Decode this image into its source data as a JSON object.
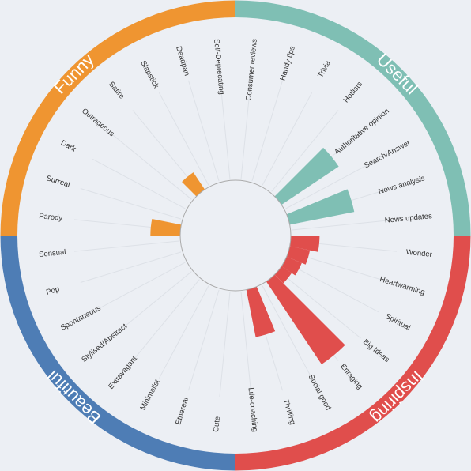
{
  "chart_data": {
    "type": "radial_bar",
    "ylim": [
      0,
      100
    ],
    "series": [
      {
        "name": "Useful",
        "color": "#7fbfb4",
        "categories": [
          "Consumer reviews",
          "Handy tips",
          "Trivia",
          "Hotlists",
          "Authoritative opinion",
          "Search/Answer",
          "News analysis",
          "News updates"
        ],
        "values": [
          0,
          0,
          0,
          0,
          67,
          0,
          64,
          0
        ]
      },
      {
        "name": "Inspiring",
        "color": "#e04e4c",
        "categories": [
          "Wonder",
          "Heartwarming",
          "Spiritual",
          "Big Ideas",
          "Enraging",
          "Social good",
          "Thrilling",
          "Life-coaching"
        ],
        "values": [
          28,
          20,
          16,
          12,
          97,
          0,
          47,
          0
        ]
      },
      {
        "name": "Beautiful",
        "color": "#4e7db5",
        "categories": [
          "Cute",
          "Ethereal",
          "Minimalist",
          "Extravagant",
          "Stylised/Abstract",
          "Spontaneous",
          "Pop",
          "Sensual"
        ],
        "values": [
          0,
          0,
          0,
          0,
          0,
          0,
          0,
          0
        ]
      },
      {
        "name": "Funny",
        "color": "#ef9531",
        "categories": [
          "Parody",
          "Surreal",
          "Dark",
          "Outrageous",
          "Satire",
          "Slapstick",
          "Deadpan",
          "Self-Deprecating"
        ],
        "values": [
          29,
          0,
          0,
          0,
          20,
          0,
          0,
          0
        ]
      }
    ]
  }
}
